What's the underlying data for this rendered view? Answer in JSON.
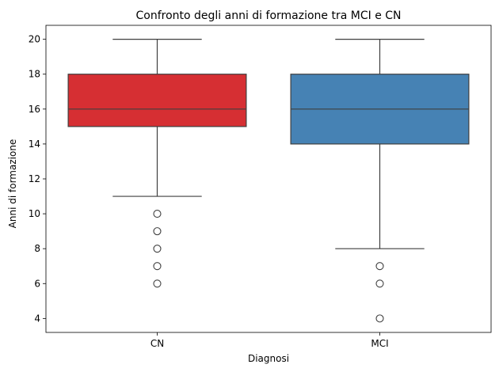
{
  "chart_data": {
    "type": "box",
    "title": "Confronto degli anni di formazione tra MCI e CN",
    "xlabel": "Diagnosi",
    "ylabel": "Anni di formazione",
    "categories": [
      "CN",
      "MCI"
    ],
    "ylim": [
      3.2,
      20.8
    ],
    "yticks": [
      4,
      6,
      8,
      10,
      12,
      14,
      16,
      18,
      20
    ],
    "grid": false,
    "boxes": [
      {
        "category": "CN",
        "color": "#d62f33",
        "whisker_low": 11,
        "q1": 15,
        "median": 16,
        "q3": 18,
        "whisker_high": 20,
        "outliers": [
          10,
          9,
          8,
          7,
          6
        ]
      },
      {
        "category": "MCI",
        "color": "#4682b4",
        "whisker_low": 8,
        "q1": 14,
        "median": 16,
        "q3": 18,
        "whisker_high": 20,
        "outliers": [
          7,
          6,
          4
        ]
      }
    ]
  }
}
